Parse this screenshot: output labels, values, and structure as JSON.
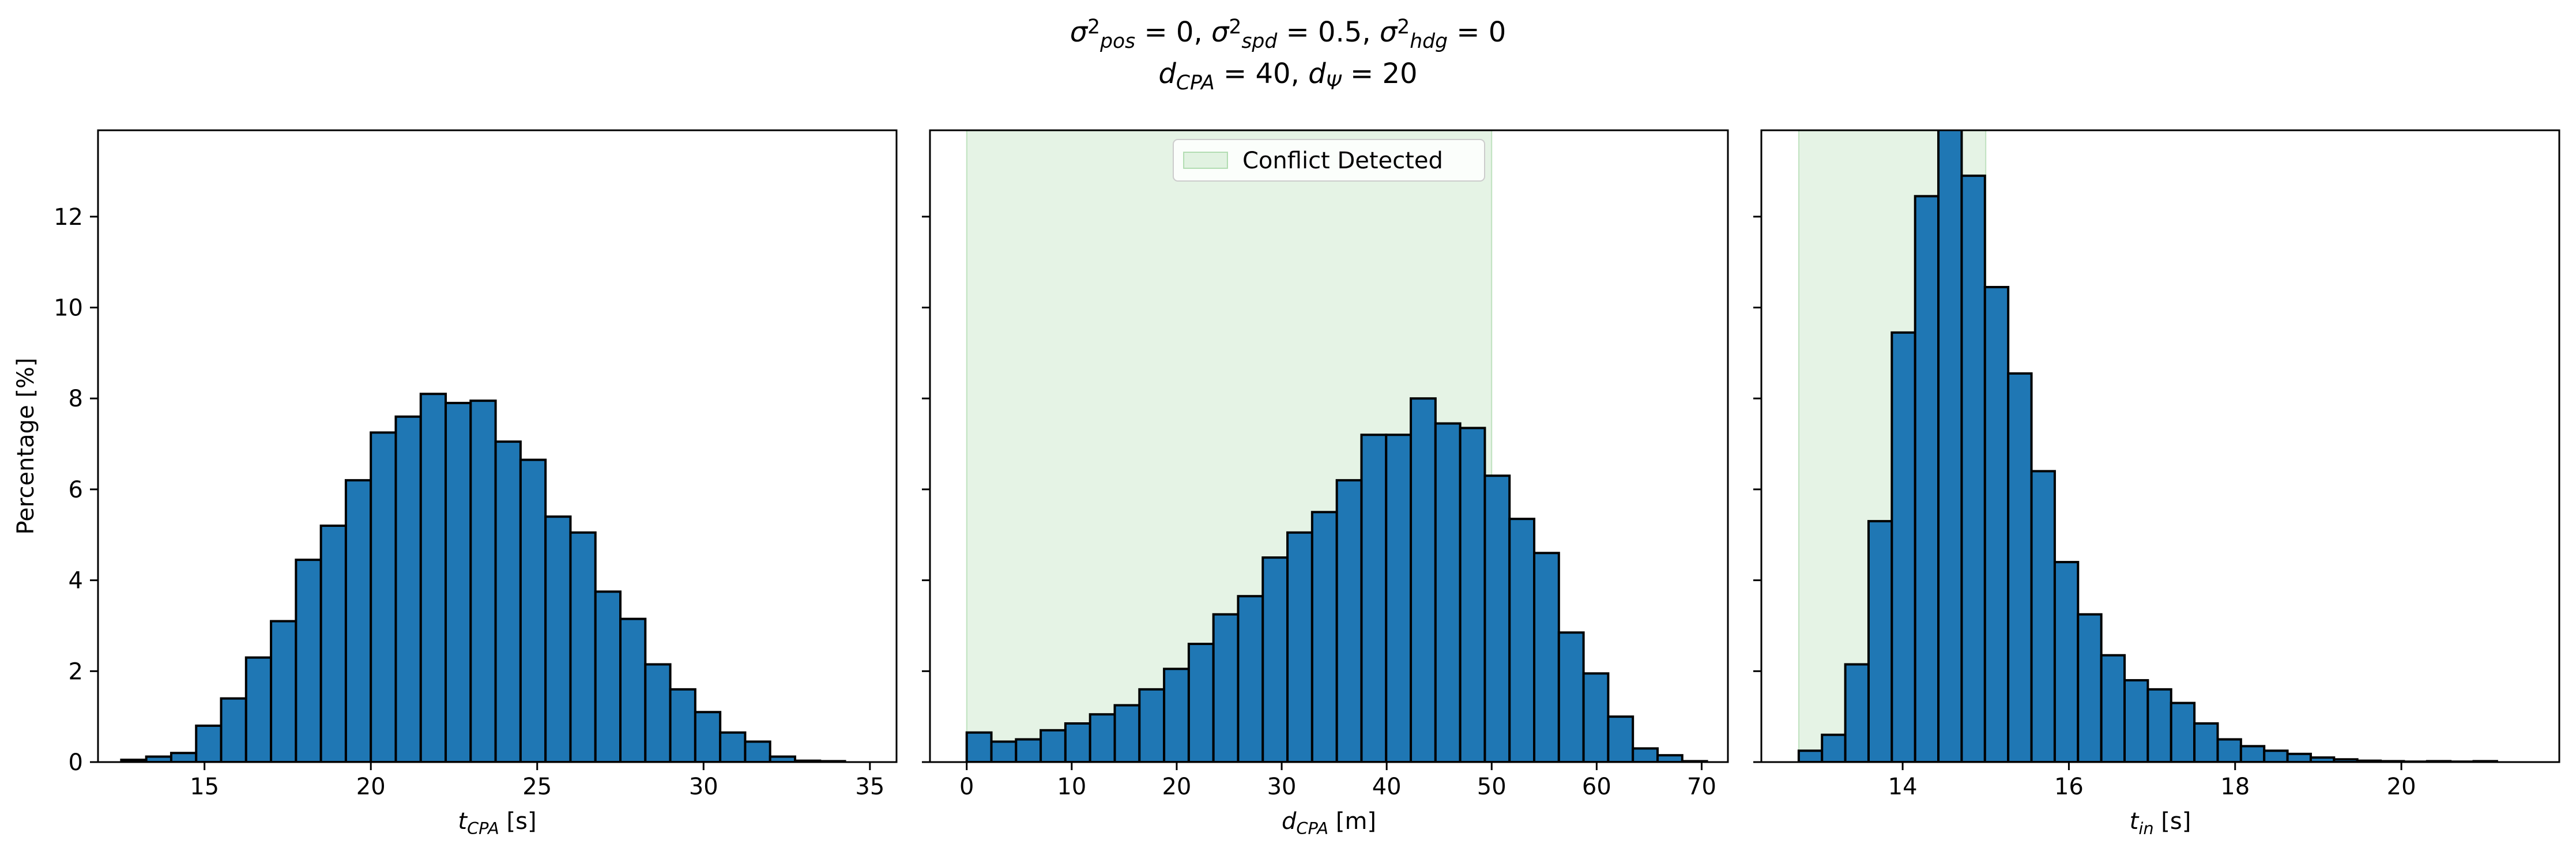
{
  "figure": {
    "title_line1": "σ²pos = 0, σ²spd = 0.5, σ²hdg = 0",
    "title_line2": "dCPA = 40, dΨ = 20",
    "title_parts": {
      "line1": [
        {
          "t": "σ",
          "s": "n"
        },
        {
          "t": "2",
          "s": "sup"
        },
        {
          "t": "pos",
          "s": "sub"
        },
        {
          "t": " = 0, ",
          "s": "n"
        },
        {
          "t": "σ",
          "s": "n"
        },
        {
          "t": "2",
          "s": "sup"
        },
        {
          "t": "spd",
          "s": "sub"
        },
        {
          "t": " = 0.5, ",
          "s": "n"
        },
        {
          "t": "σ",
          "s": "n"
        },
        {
          "t": "2",
          "s": "sup"
        },
        {
          "t": "hdg",
          "s": "sub"
        },
        {
          "t": " = 0",
          "s": "n"
        }
      ],
      "line2": [
        {
          "t": "d",
          "s": "n"
        },
        {
          "t": "CPA",
          "s": "sub"
        },
        {
          "t": " = 40, ",
          "s": "n"
        },
        {
          "t": "d",
          "s": "n"
        },
        {
          "t": "Ψ",
          "s": "sub"
        },
        {
          "t": " = 20",
          "s": "n"
        }
      ]
    },
    "colors": {
      "bar_fill": "#1f77b4",
      "bar_edge": "#000000",
      "conflict_fill": "#2ca02c",
      "conflict_alpha": 0.12
    }
  },
  "chart_data": [
    {
      "type": "bar",
      "subtype": "histogram",
      "xlabel": "tCPA [s]",
      "xlabel_parts": [
        {
          "t": "t",
          "s": "n"
        },
        {
          "t": "CPA",
          "s": "sub"
        },
        {
          "t": " [s]",
          "s": "n"
        }
      ],
      "ylabel": "Percentage [%]",
      "xlim": [
        11.8,
        35.8
      ],
      "ylim": [
        0,
        13.9
      ],
      "xticks": [
        15,
        20,
        25,
        30,
        35
      ],
      "yticks": [
        0,
        2,
        4,
        6,
        8,
        10,
        12
      ],
      "bin_start": 12.5,
      "bin_width": 0.75,
      "values": [
        0.05,
        0.12,
        0.2,
        0.8,
        1.4,
        2.3,
        3.1,
        4.45,
        5.2,
        6.2,
        7.25,
        7.6,
        8.1,
        7.9,
        7.95,
        7.05,
        6.65,
        5.4,
        5.05,
        3.75,
        3.15,
        2.15,
        1.6,
        1.1,
        0.65,
        0.45,
        0.12,
        0.03,
        0.02
      ]
    },
    {
      "type": "bar",
      "subtype": "histogram",
      "xlabel": "dCPA [m]",
      "xlabel_parts": [
        {
          "t": "d",
          "s": "n"
        },
        {
          "t": "CPA",
          "s": "sub"
        },
        {
          "t": " [m]",
          "s": "n"
        }
      ],
      "ylabel": "",
      "xlim": [
        -3.5,
        72.5
      ],
      "ylim": [
        0,
        13.9
      ],
      "xticks": [
        0,
        10,
        20,
        30,
        40,
        50,
        60,
        70
      ],
      "yticks": [
        0,
        2,
        4,
        6,
        8,
        10,
        12
      ],
      "bin_start": 0,
      "bin_width": 2.35,
      "values": [
        0.65,
        0.45,
        0.5,
        0.7,
        0.85,
        1.05,
        1.25,
        1.6,
        2.05,
        2.6,
        3.25,
        3.65,
        4.5,
        5.05,
        5.5,
        6.2,
        7.2,
        7.2,
        8.0,
        7.45,
        7.35,
        6.3,
        5.35,
        4.6,
        2.85,
        1.95,
        1.0,
        0.3,
        0.15,
        0.02
      ],
      "shaded_region": {
        "x0": 0,
        "x1": 50,
        "label": "Conflict Detected"
      },
      "legend": {
        "placement": "upper center",
        "entries": [
          "Conflict Detected"
        ]
      }
    },
    {
      "type": "bar",
      "subtype": "histogram",
      "xlabel": "tin [s]",
      "xlabel_parts": [
        {
          "t": "t",
          "s": "n"
        },
        {
          "t": "in",
          "s": "sub"
        },
        {
          "t": " [s]",
          "s": "n"
        }
      ],
      "ylabel": "",
      "xlim": [
        12.3,
        21.9
      ],
      "ylim": [
        0,
        13.9
      ],
      "xticks": [
        14,
        16,
        18,
        20
      ],
      "yticks": [
        0,
        2,
        4,
        6,
        8,
        10,
        12
      ],
      "bin_start": 12.75,
      "bin_width": 0.28,
      "values": [
        0.25,
        0.6,
        2.15,
        5.3,
        9.45,
        12.45,
        14.0,
        12.9,
        10.45,
        8.55,
        6.4,
        4.4,
        3.25,
        2.35,
        1.8,
        1.6,
        1.3,
        0.85,
        0.5,
        0.35,
        0.25,
        0.18,
        0.1,
        0.06,
        0.03,
        0.02,
        0.01,
        0.02,
        0.01,
        0.02
      ],
      "shaded_region": {
        "x0": 12.75,
        "x1": 15.0,
        "label": "Conflict Detected"
      }
    }
  ]
}
